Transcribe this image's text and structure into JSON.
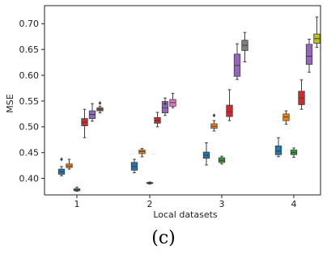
{
  "caption": "(c)",
  "chart_data": {
    "type": "box",
    "xlabel": "Local datasets",
    "ylabel": "MSE",
    "ylim": [
      0.368,
      0.735
    ],
    "yticks": [
      0.4,
      0.45,
      0.5,
      0.55,
      0.6,
      0.65,
      0.7
    ],
    "ytick_labels": [
      "0.40",
      "0.45",
      "0.50",
      "0.55",
      "0.60",
      "0.65",
      "0.70"
    ],
    "categories": [
      "1",
      "2",
      "3",
      "4"
    ],
    "grid": false,
    "series": [
      {
        "color": "#1f77b4",
        "boxes": [
          {
            "category": "1",
            "whislo": 0.405,
            "q1": 0.408,
            "med": 0.413,
            "q3": 0.418,
            "whishi": 0.423,
            "fliers": [
              0.437
            ]
          },
          {
            "category": "2",
            "whislo": 0.411,
            "q1": 0.416,
            "med": 0.423,
            "q3": 0.431,
            "whishi": 0.437,
            "fliers": []
          },
          {
            "category": "3",
            "whislo": 0.426,
            "q1": 0.439,
            "med": 0.445,
            "q3": 0.451,
            "whishi": 0.469,
            "fliers": []
          },
          {
            "category": "4",
            "whislo": 0.442,
            "q1": 0.446,
            "med": 0.453,
            "q3": 0.463,
            "whishi": 0.479,
            "fliers": []
          }
        ]
      },
      {
        "color": "#ff7f0e",
        "boxes": [
          {
            "category": "1",
            "whislo": 0.418,
            "q1": 0.421,
            "med": 0.424,
            "q3": 0.428,
            "whishi": 0.437,
            "fliers": []
          },
          {
            "category": "2",
            "whislo": 0.442,
            "q1": 0.448,
            "med": 0.452,
            "q3": 0.455,
            "whishi": 0.458,
            "fliers": []
          },
          {
            "category": "3",
            "whislo": 0.492,
            "q1": 0.497,
            "med": 0.501,
            "q3": 0.506,
            "whishi": 0.512,
            "fliers": [
              0.522
            ]
          },
          {
            "category": "4",
            "whislo": 0.505,
            "q1": 0.512,
            "med": 0.519,
            "q3": 0.525,
            "whishi": 0.531,
            "fliers": []
          }
        ]
      },
      {
        "color": "#2ca02c",
        "boxes": [
          {
            "category": "1",
            "whislo": 0.375,
            "q1": 0.376,
            "med": 0.378,
            "q3": 0.38,
            "whishi": 0.383,
            "fliers": []
          },
          {
            "category": "2",
            "whislo": 0.389,
            "q1": 0.39,
            "med": 0.391,
            "q3": 0.392,
            "whishi": 0.393,
            "fliers": []
          },
          {
            "category": "3",
            "whislo": 0.428,
            "q1": 0.431,
            "med": 0.435,
            "q3": 0.44,
            "whishi": 0.443,
            "fliers": []
          },
          {
            "category": "4",
            "whislo": 0.441,
            "q1": 0.446,
            "med": 0.45,
            "q3": 0.455,
            "whishi": 0.459,
            "fliers": []
          }
        ]
      },
      {
        "color": "#d62728",
        "boxes": [
          {
            "category": "1",
            "whislo": 0.479,
            "q1": 0.502,
            "med": 0.509,
            "q3": 0.516,
            "whishi": 0.534,
            "fliers": []
          },
          {
            "category": "2",
            "whislo": 0.5,
            "q1": 0.507,
            "med": 0.512,
            "q3": 0.518,
            "whishi": 0.528,
            "fliers": []
          },
          {
            "category": "3",
            "whislo": 0.512,
            "q1": 0.52,
            "med": 0.529,
            "q3": 0.542,
            "whishi": 0.572,
            "fliers": []
          },
          {
            "category": "4",
            "whislo": 0.534,
            "q1": 0.543,
            "med": 0.556,
            "q3": 0.569,
            "whishi": 0.591,
            "fliers": []
          }
        ]
      },
      {
        "color": "#9467bd",
        "boxes": [
          {
            "category": "1",
            "whislo": 0.511,
            "q1": 0.516,
            "med": 0.524,
            "q3": 0.531,
            "whishi": 0.545,
            "fliers": []
          },
          {
            "category": "2",
            "whislo": 0.522,
            "q1": 0.527,
            "med": 0.537,
            "q3": 0.549,
            "whishi": 0.556,
            "fliers": [
              0.545
            ]
          },
          {
            "category": "3",
            "whislo": 0.592,
            "q1": 0.598,
            "med": 0.619,
            "q3": 0.641,
            "whishi": 0.661,
            "fliers": []
          },
          {
            "category": "4",
            "whislo": 0.606,
            "q1": 0.621,
            "med": 0.637,
            "q3": 0.66,
            "whishi": 0.67,
            "fliers": []
          }
        ]
      },
      {
        "color": "#8c564b",
        "boxes": [
          {
            "category": "1",
            "whislo": 0.527,
            "q1": 0.531,
            "med": 0.534,
            "q3": 0.537,
            "whishi": 0.54,
            "fliers": [
              0.546
            ]
          }
        ]
      },
      {
        "color": "#e377c2",
        "boxes": [
          {
            "category": "2",
            "whislo": 0.537,
            "q1": 0.54,
            "med": 0.547,
            "q3": 0.553,
            "whishi": 0.565,
            "fliers": []
          }
        ]
      },
      {
        "color": "#7f7f7f",
        "boxes": [
          {
            "category": "3",
            "whislo": 0.626,
            "q1": 0.648,
            "med": 0.658,
            "q3": 0.668,
            "whishi": 0.683,
            "fliers": []
          }
        ]
      },
      {
        "color": "#bcbd22",
        "boxes": [
          {
            "category": "4",
            "whislo": 0.654,
            "q1": 0.662,
            "med": 0.671,
            "q3": 0.68,
            "whishi": 0.713,
            "fliers": []
          }
        ]
      }
    ]
  }
}
